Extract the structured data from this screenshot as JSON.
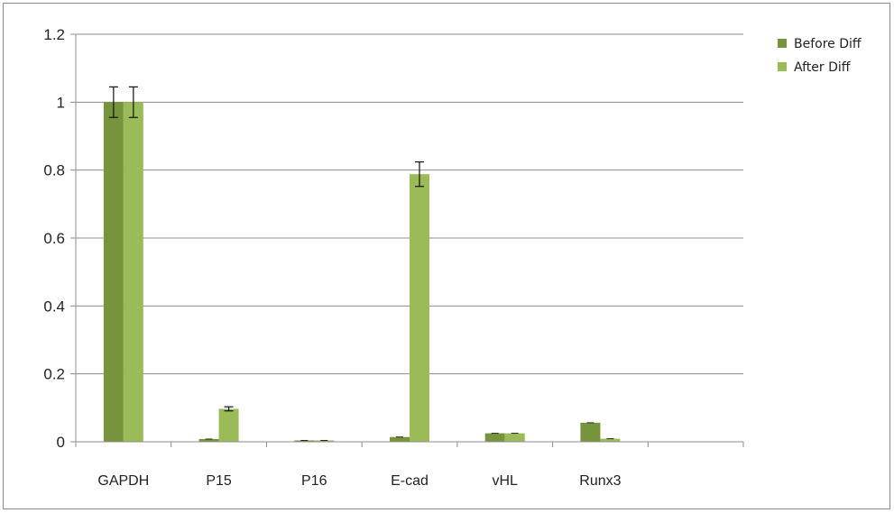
{
  "chart_data": {
    "type": "bar",
    "categories": [
      "GAPDH",
      "P15",
      "P16",
      "E-cad",
      "vHL",
      "Runx3"
    ],
    "series": [
      {
        "name": "Before Diff",
        "color": "#77933c",
        "values": [
          1.0,
          0.008,
          0.004,
          0.014,
          0.025,
          0.056
        ],
        "errors": [
          0.045,
          0.0,
          0.0,
          0.0,
          0.0,
          0.0
        ]
      },
      {
        "name": "After Diff",
        "color": "#9bbb59",
        "values": [
          1.0,
          0.097,
          0.004,
          0.788,
          0.025,
          0.009
        ],
        "errors": [
          0.045,
          0.006,
          0.0,
          0.036,
          0.0,
          0.0
        ]
      }
    ],
    "ylim": [
      0,
      1.2
    ],
    "yticks": [
      "0",
      "0.2",
      "0.4",
      "0.6",
      "0.8",
      "1",
      "1.2"
    ],
    "ytick_values": [
      0,
      0.2,
      0.4,
      0.6,
      0.8,
      1.0,
      1.2
    ],
    "grid": true,
    "legend_position": "top-right",
    "title": "",
    "xlabel": "",
    "ylabel": ""
  }
}
